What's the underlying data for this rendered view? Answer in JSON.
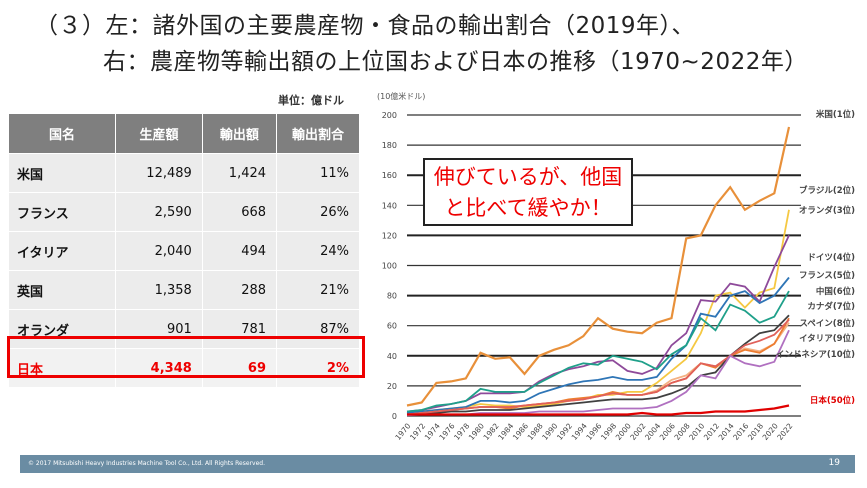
{
  "title": {
    "line1": "（３）左：諸外国の主要農産物・食品の輸出割合（2019年）、",
    "line2": "右：農産物等輸出額の上位国および日本の推移（1970~2022年）"
  },
  "table": {
    "unit": "単位：億ドル",
    "headers": [
      "国名",
      "生産額",
      "輸出額",
      "輸出割合"
    ],
    "rows": [
      [
        "米国",
        "12,489",
        "1,424",
        "11%"
      ],
      [
        "フランス",
        "2,590",
        "668",
        "26%"
      ],
      [
        "イタリア",
        "2,040",
        "494",
        "24%"
      ],
      [
        "英国",
        "1,358",
        "288",
        "21%"
      ],
      [
        "オランダ",
        "901",
        "781",
        "87%"
      ],
      [
        "日本",
        "4,348",
        "69",
        "2%"
      ]
    ],
    "highlight_color": "#e00000"
  },
  "callout": {
    "line1": "伸びているが、他国",
    "line2": "と比べて緩やか！"
  },
  "chart_data": {
    "type": "line",
    "ylabel": "(10億米ドル)",
    "ylim": [
      0,
      200
    ],
    "yticks": [
      0,
      20,
      40,
      60,
      80,
      100,
      120,
      140,
      160,
      180,
      200
    ],
    "grid": true,
    "x": [
      1970,
      1972,
      1974,
      1976,
      1978,
      1980,
      1982,
      1984,
      1986,
      1988,
      1990,
      1992,
      1994,
      1996,
      1998,
      2000,
      2002,
      2004,
      2006,
      2008,
      2010,
      2012,
      2014,
      2016,
      2018,
      2020,
      2022
    ],
    "series": [
      {
        "name": "米国(1位)",
        "color": "#e8903a",
        "values": [
          7,
          9,
          22,
          23,
          25,
          42,
          38,
          39,
          28,
          40,
          44,
          47,
          53,
          65,
          58,
          56,
          55,
          62,
          65,
          118,
          120,
          140,
          152,
          137,
          143,
          148,
          192
        ]
      },
      {
        "name": "ブラジル(2位)",
        "color": "#f5c842",
        "values": [
          2,
          3,
          4,
          5,
          6,
          8,
          7,
          7,
          6,
          7,
          8,
          10,
          11,
          14,
          14,
          16,
          16,
          22,
          30,
          38,
          55,
          80,
          82,
          72,
          82,
          85,
          137
        ]
      },
      {
        "name": "オランダ(3位)",
        "color": "#8e4a9a",
        "values": [
          3,
          4,
          6,
          8,
          10,
          15,
          15,
          15,
          16,
          23,
          28,
          31,
          33,
          36,
          37,
          30,
          28,
          32,
          47,
          55,
          77,
          76,
          88,
          86,
          76,
          99,
          120
        ]
      },
      {
        "name": "ドイツ(4位)",
        "color": "#2e75b6",
        "values": [
          2,
          3,
          4,
          5,
          6,
          10,
          10,
          9,
          10,
          15,
          18,
          21,
          23,
          24,
          26,
          24,
          24,
          26,
          38,
          47,
          68,
          66,
          80,
          83,
          75,
          80,
          92
        ]
      },
      {
        "name": "フランス(5位)",
        "color": "#1fa08a",
        "values": [
          3,
          4,
          7,
          8,
          10,
          18,
          16,
          16,
          16,
          22,
          27,
          32,
          35,
          34,
          40,
          38,
          36,
          31,
          41,
          47,
          65,
          57,
          74,
          70,
          62,
          66,
          83
        ]
      },
      {
        "name": "中国(6位)",
        "color": "#f4b183",
        "values": [
          1,
          2,
          3,
          4,
          5,
          6,
          6,
          6,
          7,
          8,
          9,
          10,
          11,
          13,
          15,
          14,
          14,
          17,
          24,
          27,
          35,
          33,
          40,
          45,
          43,
          48,
          62
        ]
      },
      {
        "name": "カナダ(7位)",
        "color": "#ed7d31",
        "values": [
          1,
          2,
          3,
          4,
          5,
          6,
          6,
          5,
          7,
          8,
          9,
          11,
          12,
          13,
          16,
          14,
          14,
          16,
          22,
          25,
          35,
          32,
          40,
          44,
          42,
          48,
          65
        ]
      },
      {
        "name": "スペイン(8位)",
        "color": "#404040",
        "values": [
          1,
          1,
          2,
          3,
          3,
          4,
          4,
          4,
          5,
          6,
          7,
          8,
          9,
          10,
          11,
          11,
          11,
          12,
          15,
          19,
          27,
          29,
          40,
          48,
          55,
          57,
          67
        ]
      },
      {
        "name": "イタリア(9位)",
        "color": "#e0605a",
        "values": [
          1,
          2,
          3,
          4,
          5,
          6,
          6,
          6,
          7,
          8,
          9,
          10,
          11,
          13,
          15,
          14,
          14,
          16,
          22,
          25,
          35,
          33,
          40,
          47,
          50,
          54,
          64
        ]
      },
      {
        "name": "インドネシア(10位)",
        "color": "#b070c0",
        "values": [
          0.5,
          1,
          1,
          1,
          1,
          2,
          2,
          2,
          2,
          3,
          3,
          3,
          3,
          4,
          5,
          5,
          5,
          6,
          10,
          16,
          27,
          25,
          40,
          35,
          33,
          36,
          57
        ]
      },
      {
        "name": "日本(50位)",
        "color": "#e00000",
        "values": [
          1,
          1,
          1,
          1,
          1,
          1,
          1,
          1,
          1,
          1,
          1,
          1,
          1,
          1,
          1,
          1,
          2,
          1,
          1,
          2,
          2,
          3,
          3,
          3,
          4,
          5,
          7
        ]
      }
    ]
  },
  "footer": {
    "copyright": "© 2017 Mitsubishi Heavy Industries Machine Tool Co., Ltd.   All Rights Reserved.",
    "page": "19"
  }
}
